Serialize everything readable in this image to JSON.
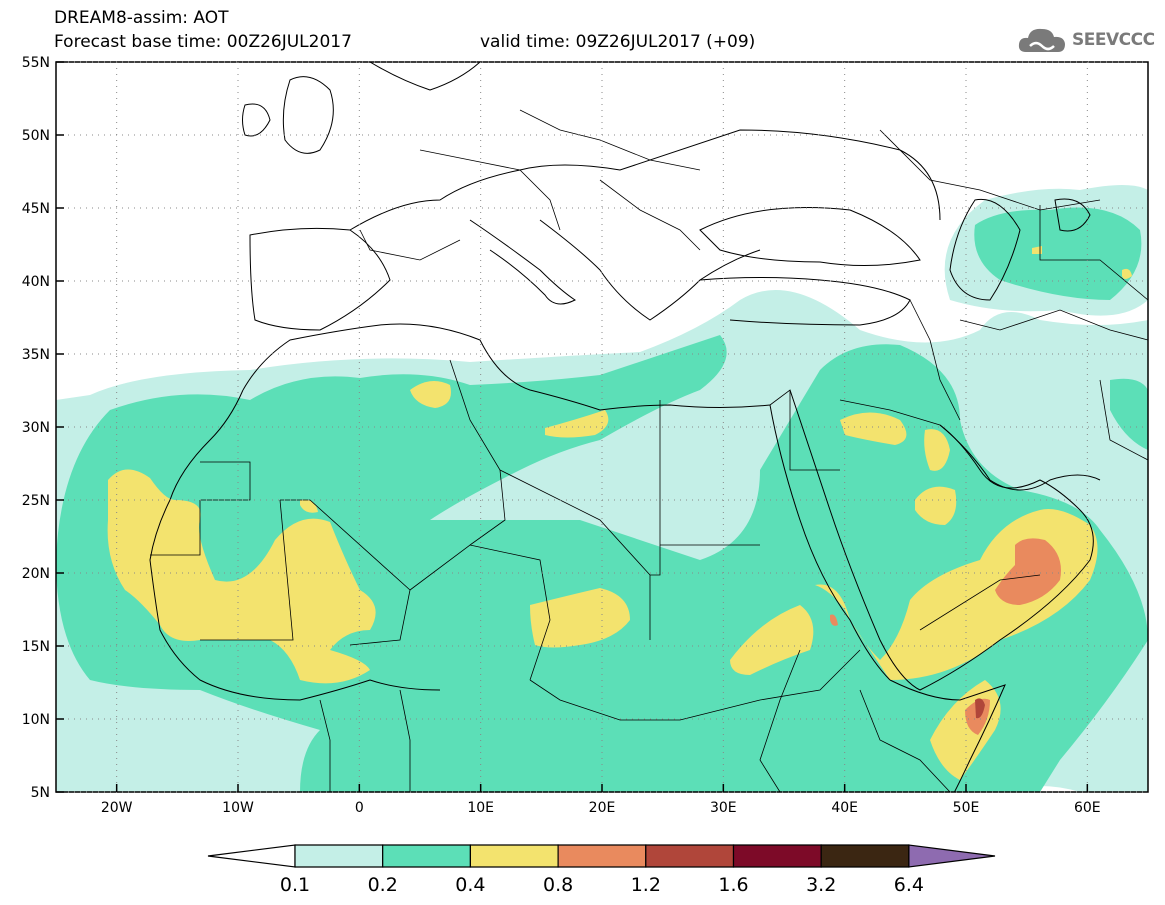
{
  "header": {
    "model_line": "DREAM8-assim: AOT",
    "base_time_line": "Forecast base time: 00Z26JUL2017",
    "valid_time_line": "valid time: 09Z26JUL2017 (+09)",
    "logo_text": "SEEVCCC"
  },
  "map": {
    "lat_labels": [
      "55N",
      "50N",
      "45N",
      "40N",
      "35N",
      "30N",
      "25N",
      "20N",
      "15N",
      "10N",
      "5N"
    ],
    "lon_labels": [
      "20W",
      "10W",
      "0",
      "10E",
      "20E",
      "30E",
      "40E",
      "50E",
      "60E"
    ],
    "lat_values": [
      55,
      50,
      45,
      40,
      35,
      30,
      25,
      20,
      15,
      10,
      5
    ],
    "lon_values": [
      -20,
      -10,
      0,
      10,
      20,
      30,
      40,
      50,
      60
    ],
    "lon_range": [
      -25,
      65
    ],
    "lat_range": [
      5,
      55
    ]
  },
  "colorbar": {
    "labels": [
      "0.1",
      "0.2",
      "0.4",
      "0.8",
      "1.2",
      "1.6",
      "3.2",
      "6.4"
    ],
    "colors": [
      "#ffffff",
      "#c4efe7",
      "#5cdfb7",
      "#f3e36e",
      "#e98a5e",
      "#b0463a",
      "#7d0a28",
      "#3b2612",
      "#8e6bb0"
    ]
  }
}
